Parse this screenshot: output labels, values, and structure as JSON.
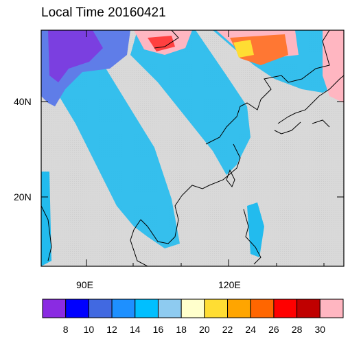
{
  "title": "Local Time 20160421",
  "axes": {
    "lat_labels": [
      "40N",
      "20N"
    ],
    "lon_labels": [
      "90E",
      "120E"
    ]
  },
  "colors": {
    "ocean_land_missing": "#d6d6d6",
    "coast": "#000000"
  },
  "colorbar": {
    "labels": [
      "8",
      "10",
      "12",
      "14",
      "16",
      "18",
      "20",
      "22",
      "24",
      "26",
      "28",
      "30"
    ],
    "colors": [
      "#8a2be2",
      "#0000ff",
      "#4169e1",
      "#1e90ff",
      "#00bfff",
      "#8ecbf0",
      "#ffffcc",
      "#ffdd33",
      "#ffa500",
      "#ff6600",
      "#ff0000",
      "#c00000",
      "#ffb6c1"
    ]
  }
}
